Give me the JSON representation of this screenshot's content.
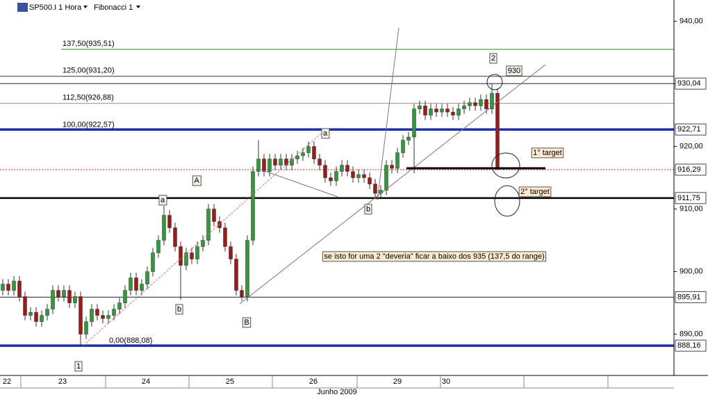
{
  "chart_data": {
    "type": "candlestick",
    "title": "SP500.I 1 Hora",
    "indicator": "Fibonacci 1",
    "up_color": "#2e9a3c",
    "down_color": "#a01818",
    "ylim": [
      883.4,
      943.4
    ],
    "yticks": [
      {
        "value": 890,
        "label": "890,00"
      },
      {
        "value": 900,
        "label": "900,00"
      },
      {
        "value": 910,
        "label": "910,00"
      },
      {
        "value": 920,
        "label": "920,00"
      },
      {
        "value": 930,
        "label": "930,00"
      },
      {
        "value": 940,
        "label": "940,00"
      }
    ],
    "days": [
      "22",
      "23",
      "24",
      "25",
      "26",
      "29",
      "30"
    ],
    "month": "Junho 2009",
    "open": [
      897,
      898,
      897,
      898.5,
      896,
      893,
      893.5,
      892,
      893,
      894,
      897,
      896,
      897,
      895,
      896,
      890,
      892,
      894,
      893,
      892.5,
      893,
      894,
      895,
      897,
      899,
      897,
      898,
      900,
      903,
      905,
      909,
      907,
      904,
      901,
      903,
      902,
      904,
      905,
      910,
      908,
      907,
      904,
      902,
      897,
      896,
      905,
      916,
      918,
      916,
      918,
      917,
      918,
      917,
      918,
      918.5,
      919,
      920,
      918,
      917,
      915,
      914.5,
      916,
      917,
      916,
      915,
      915.5,
      915,
      914,
      912.5,
      913,
      917,
      916.5,
      919,
      921,
      921.5,
      926,
      926.5,
      925,
      926,
      925.5,
      926,
      925.5,
      925,
      926,
      926.5,
      927,
      926.5,
      927.5,
      926,
      928.5
    ],
    "high": [
      898.8,
      898.8,
      899.3,
      899.3,
      896.8,
      894.3,
      894.3,
      893.8,
      894.8,
      897.8,
      897.8,
      897.8,
      897.8,
      896.8,
      896.8,
      892.8,
      894.8,
      894.8,
      893.8,
      893.8,
      894.8,
      895.8,
      897.8,
      899.8,
      899.8,
      898.8,
      900.8,
      903.8,
      905.8,
      910.5,
      909.8,
      907.8,
      904.8,
      903.8,
      903.8,
      904.8,
      905.8,
      910.8,
      910.8,
      908.8,
      907.8,
      904.8,
      902.8,
      897.8,
      905.8,
      916.8,
      921,
      918.8,
      918.8,
      918.8,
      918.8,
      918.8,
      918.8,
      919.3,
      919.8,
      920.8,
      920.8,
      918.8,
      917.8,
      915.8,
      916.8,
      917.8,
      917.8,
      916.8,
      916.3,
      916.3,
      915.8,
      914.8,
      913.8,
      917.8,
      917.8,
      919.8,
      921.8,
      922.3,
      926.8,
      927.3,
      927.3,
      926.8,
      926.8,
      926.8,
      926.8,
      926.3,
      926.8,
      927.3,
      927.8,
      927.8,
      928.3,
      928.3,
      930,
      929.3
    ],
    "low": [
      896.2,
      896.2,
      896.2,
      895.2,
      892.2,
      892.2,
      891.2,
      891.2,
      892.2,
      893.2,
      895.2,
      895.2,
      894.2,
      894.2,
      888.1,
      889.2,
      891.2,
      892.2,
      891.7,
      891.7,
      892.2,
      893.2,
      894.2,
      896.2,
      896.2,
      896.2,
      897.2,
      899.2,
      902.2,
      904.2,
      906.2,
      903.2,
      895.5,
      900.2,
      901.2,
      901.2,
      903.2,
      904.2,
      907.2,
      906.2,
      903.2,
      901.2,
      896.2,
      895.3,
      895.2,
      904.2,
      915.2,
      915.2,
      915.2,
      916.2,
      916.2,
      916.2,
      916.2,
      917.2,
      917.7,
      918.2,
      917.2,
      916.2,
      914.2,
      913.7,
      913.7,
      915.2,
      915.2,
      914.2,
      914.2,
      914.2,
      913.2,
      911.7,
      911.7,
      912.2,
      915.7,
      915.7,
      918.2,
      920.2,
      915.7,
      925.2,
      924.2,
      924.2,
      924.7,
      924.7,
      924.7,
      924.2,
      924.2,
      925.2,
      925.7,
      925.7,
      925.7,
      925.2,
      925.2,
      916.3
    ],
    "close": [
      898,
      897,
      898.5,
      896,
      893,
      893.5,
      892,
      893,
      894,
      897,
      896,
      897,
      895,
      896,
      890,
      892,
      894,
      893,
      892.5,
      893,
      894,
      895,
      897,
      899,
      897,
      898,
      900,
      903,
      905,
      909,
      907,
      904,
      901,
      903,
      902,
      904,
      905,
      910,
      908,
      907,
      904,
      902,
      897,
      896,
      905,
      916,
      918,
      916,
      918,
      917,
      918,
      917,
      918,
      918.5,
      919,
      920,
      918,
      917,
      915,
      914.5,
      916,
      917,
      916,
      915,
      915.5,
      915,
      914,
      912.5,
      913,
      917,
      916.5,
      919,
      921,
      921.5,
      926,
      926.5,
      925,
      926,
      925.5,
      926,
      925.5,
      925,
      926,
      926.5,
      927,
      926.5,
      927.5,
      926,
      928.5,
      916.3
    ],
    "fib_levels": [
      {
        "value": 935.51,
        "label": "137,50(935,51)",
        "color": "#2a8a2a"
      },
      {
        "value": 931.2,
        "label": "125,00(931,20)",
        "color": "#333333"
      },
      {
        "value": 926.88,
        "label": "112,50(926,88)",
        "color": "#b08a7a"
      },
      {
        "value": 922.57,
        "label": "100,00(922,57)",
        "color": "#1a2fa8"
      },
      {
        "value": 888.08,
        "label": "0,00(888,08)",
        "color": "#c02020"
      }
    ],
    "price_lines": [
      {
        "value": 930.04,
        "label": "930,04",
        "style": "thin"
      },
      {
        "value": 922.71,
        "label": "922,71",
        "style": "blue"
      },
      {
        "value": 916.29,
        "label": "916,29",
        "style": "dotted"
      },
      {
        "value": 911.75,
        "label": "911,75",
        "style": "thick"
      },
      {
        "value": 895.91,
        "label": "895,91",
        "style": "thin"
      },
      {
        "value": 888.16,
        "label": "888,16",
        "style": "blue"
      }
    ],
    "annotations": [
      "2",
      "930",
      "a",
      "A",
      "a",
      "b",
      "b",
      "B",
      "1",
      "1° target",
      "2° target",
      "se isto for uma 2 \"deveria\" ficar a baixo dos 935 (137,5 do range)"
    ]
  }
}
